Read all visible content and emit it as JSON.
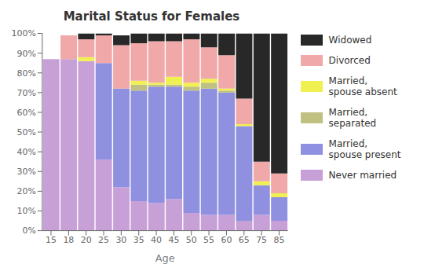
{
  "chart_data": {
    "type": "bar",
    "stacked": true,
    "title": "Marital Status for Females",
    "xlabel": "Age",
    "categories": [
      "15",
      "18",
      "20",
      "25",
      "30",
      "35",
      "40",
      "45",
      "50",
      "55",
      "60",
      "65",
      "75",
      "85"
    ],
    "series": [
      {
        "name": "Never married",
        "color": "#c8a0d8",
        "values": [
          87,
          87,
          86,
          36,
          22,
          15,
          14,
          16,
          9,
          8,
          8,
          5,
          8,
          5
        ]
      },
      {
        "name": "Married,\nspouse present",
        "color": "#9090e0",
        "values": [
          0,
          0,
          0,
          49,
          50,
          56,
          59,
          57,
          62,
          64,
          62,
          48,
          15,
          12
        ]
      },
      {
        "name": "Married,\nseparated",
        "color": "#c0c080",
        "values": [
          0,
          0,
          0,
          0,
          0,
          3,
          1,
          1,
          2,
          3,
          1,
          0,
          0,
          0
        ]
      },
      {
        "name": "Married,\nspouse absent",
        "color": "#f0f050",
        "values": [
          0,
          0,
          2,
          0,
          0,
          2,
          1,
          4,
          2,
          2,
          1,
          1,
          2,
          2
        ]
      },
      {
        "name": "Divorced",
        "color": "#f0a8a8",
        "values": [
          0,
          12,
          9,
          14,
          22,
          19,
          21,
          18,
          22,
          16,
          17,
          13,
          10,
          10
        ]
      },
      {
        "name": "Widowed",
        "color": "#282828",
        "values": [
          0,
          0,
          3,
          1,
          5,
          5,
          4,
          4,
          3,
          7,
          11,
          33,
          65,
          71
        ]
      }
    ],
    "ylim": [
      0,
      100
    ],
    "yticks": [
      {
        "value": 0,
        "label": "0%"
      },
      {
        "value": 10,
        "label": "10%"
      },
      {
        "value": 20,
        "label": "20%"
      },
      {
        "value": 30,
        "label": "30%"
      },
      {
        "value": 40,
        "label": "40%"
      },
      {
        "value": 50,
        "label": "50%"
      },
      {
        "value": 60,
        "label": "60%"
      },
      {
        "value": 70,
        "label": "70%"
      },
      {
        "value": 80,
        "label": "80%"
      },
      {
        "value": 90,
        "label": "90%"
      },
      {
        "value": 100,
        "label": "100%"
      }
    ],
    "grid": false
  }
}
